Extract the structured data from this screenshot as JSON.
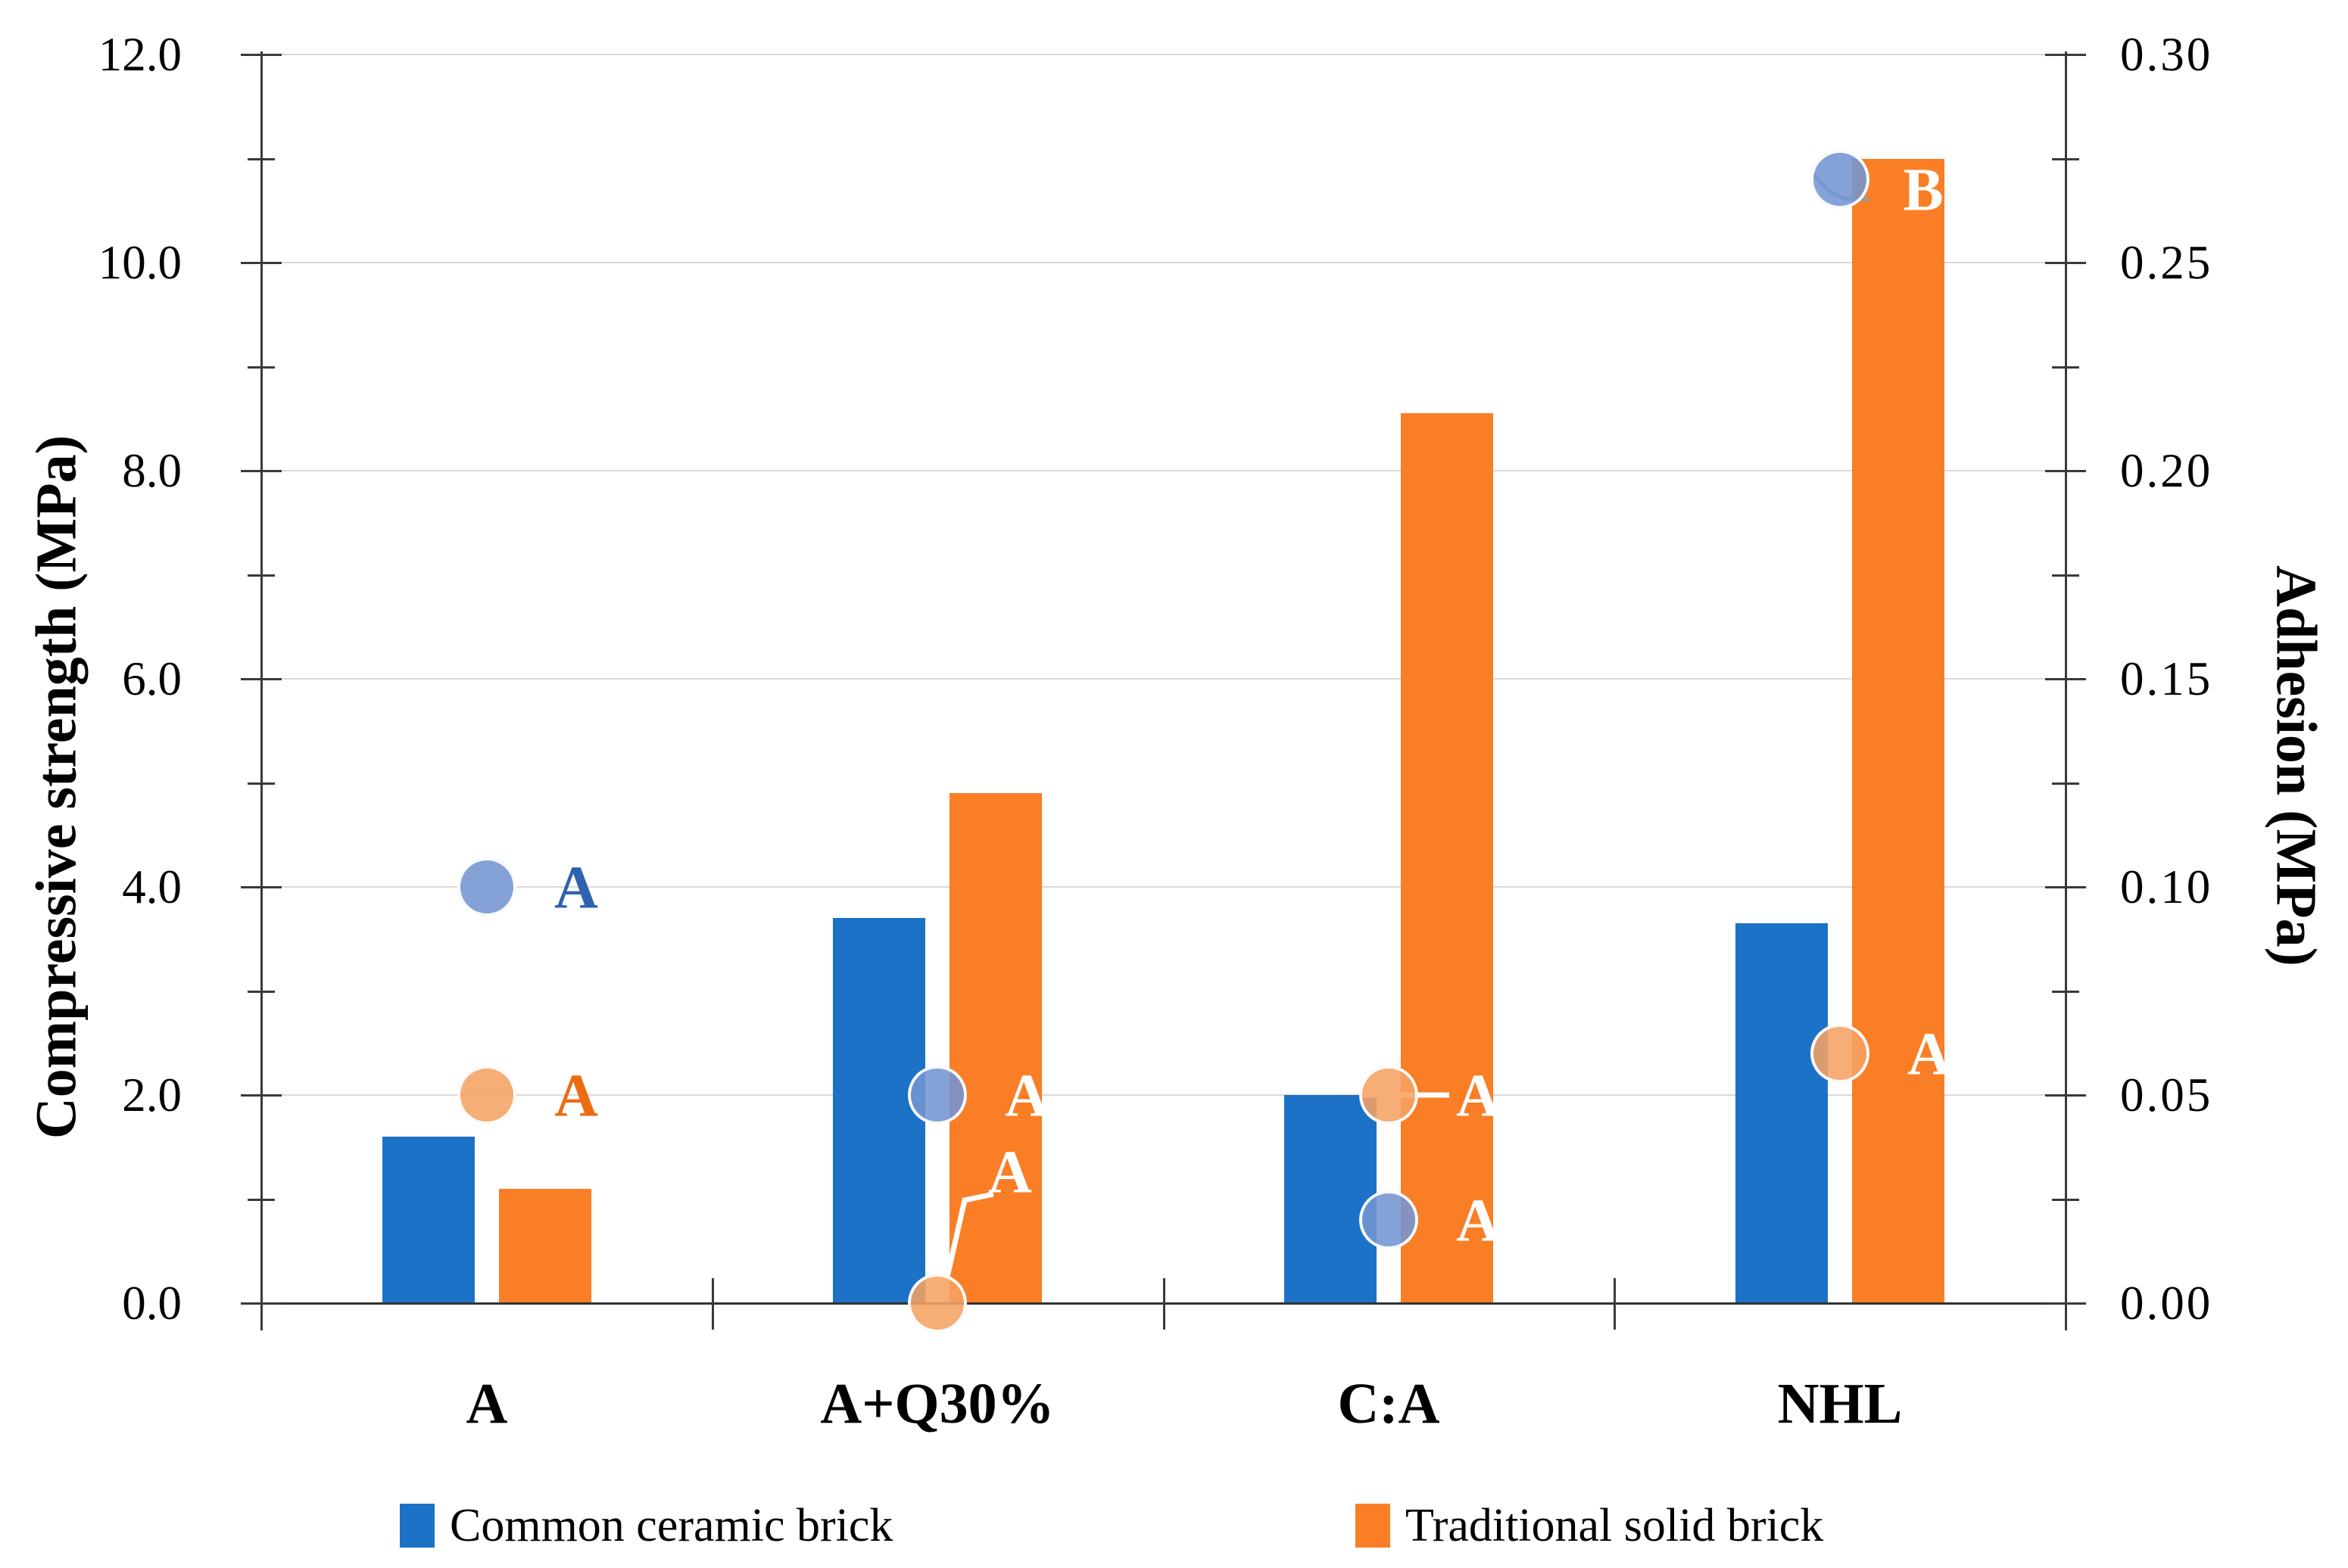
{
  "figure": {
    "background": "#FFFFFF"
  },
  "chart_data": {
    "type": "bar",
    "subtype": "dual-axis grouped bars with adhesion circle markers",
    "title": "",
    "categories": [
      "A",
      "A+Q30%",
      "C:A",
      "NHL"
    ],
    "series": [
      {
        "name": "Common ceramic brick",
        "type": "bar",
        "axis": "left",
        "color": "#1C72C6",
        "values": [
          1.6,
          3.7,
          2.0,
          3.65
        ]
      },
      {
        "name": "Traditional solid brick",
        "type": "bar",
        "axis": "left",
        "color": "#F97E26",
        "values": [
          1.1,
          4.9,
          8.55,
          11.0
        ]
      }
    ],
    "markers": [
      {
        "series": "Common ceramic brick",
        "type": "scatter",
        "axis": "right",
        "fill": "rgba(115,149,211,0.88)",
        "values": [
          0.1,
          0.05,
          0.02,
          0.27
        ],
        "letters": [
          "A",
          "A",
          "A",
          "B"
        ],
        "letter_colors": [
          "#2F62AE",
          "#FFFFFF",
          "#FFFFFF",
          "#FFFFFF"
        ]
      },
      {
        "series": "Traditional solid brick",
        "type": "scatter",
        "axis": "right",
        "fill": "rgba(245,162,99,0.88)",
        "values": [
          0.05,
          0.0,
          0.05,
          0.06
        ],
        "letters": [
          "A",
          "A",
          "A",
          "A"
        ],
        "letter_colors": [
          "#ED6B11",
          "#FFFFFF",
          "#FFFFFF",
          "#FFFFFF"
        ]
      }
    ],
    "left_axis": {
      "title": "Compressive strength (MPa)",
      "min": 0,
      "max": 12,
      "major_step": 2,
      "minor_step": 1,
      "ticks": [
        {
          "v": 12,
          "label": "12.0"
        },
        {
          "v": 10,
          "label": "10.0"
        },
        {
          "v": 8,
          "label": "8.0"
        },
        {
          "v": 6,
          "label": "6.0"
        },
        {
          "v": 4,
          "label": "4.0"
        },
        {
          "v": 2,
          "label": "2.0"
        },
        {
          "v": 0,
          "label": "0.0"
        }
      ]
    },
    "right_axis": {
      "title": "Adhesion (MPa)",
      "min": 0,
      "max": 0.3,
      "major_step": 0.05,
      "minor_step": 0.025,
      "ticks": [
        {
          "v": 0.3,
          "label": "0.30"
        },
        {
          "v": 0.25,
          "label": "0.25"
        },
        {
          "v": 0.2,
          "label": "0.20"
        },
        {
          "v": 0.15,
          "label": "0.15"
        },
        {
          "v": 0.1,
          "label": "0.10"
        },
        {
          "v": 0.05,
          "label": "0.05"
        },
        {
          "v": 0.0,
          "label": "0.00"
        }
      ]
    },
    "legend": [
      {
        "label": "Common ceramic brick",
        "color": "#1C72C6"
      },
      {
        "label": "Traditional solid brick",
        "color": "#F97E26"
      }
    ],
    "grid": true,
    "legend_position": "bottom"
  }
}
